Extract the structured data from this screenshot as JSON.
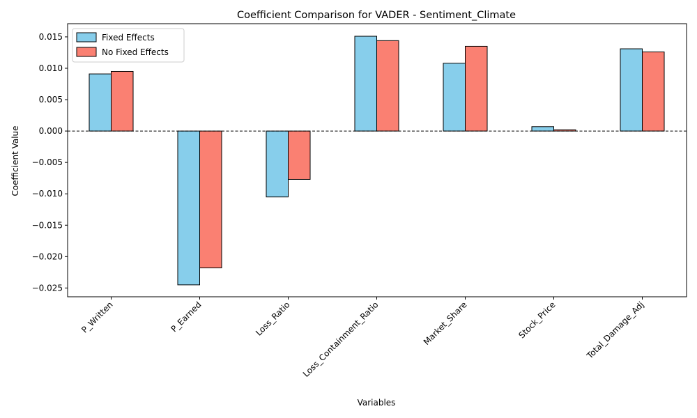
{
  "chart_data": {
    "type": "bar",
    "title": "Coefficient Comparison for VADER - Sentiment_Climate",
    "xlabel": "Variables",
    "ylabel": "Coefficient Value",
    "categories": [
      "P_Written",
      "P_Earned",
      "Loss_Ratio",
      "Loss_Containment_Ratio",
      "Market_Share",
      "Stock_Price",
      "Total_Damage_Adj"
    ],
    "series": [
      {
        "name": "Fixed Effects",
        "color": "#87ceeb",
        "values": [
          0.0091,
          -0.0245,
          -0.0105,
          0.0151,
          0.0108,
          0.0007,
          0.0131
        ]
      },
      {
        "name": "No Fixed Effects",
        "color": "#fa8072",
        "values": [
          0.0095,
          -0.0218,
          -0.0077,
          0.0144,
          0.0135,
          0.0002,
          0.0126
        ]
      }
    ],
    "ylim": [
      -0.0264,
      0.0171
    ],
    "yticks": [
      -0.025,
      -0.02,
      -0.015,
      -0.01,
      -0.005,
      0.0,
      0.005,
      0.01,
      0.015
    ],
    "ytick_labels": [
      "−0.025",
      "−0.020",
      "−0.015",
      "−0.010",
      "−0.005",
      "0.000",
      "0.005",
      "0.010",
      "0.015"
    ],
    "zero_line": "dashed",
    "grid": false,
    "legend_position": "top-left"
  }
}
